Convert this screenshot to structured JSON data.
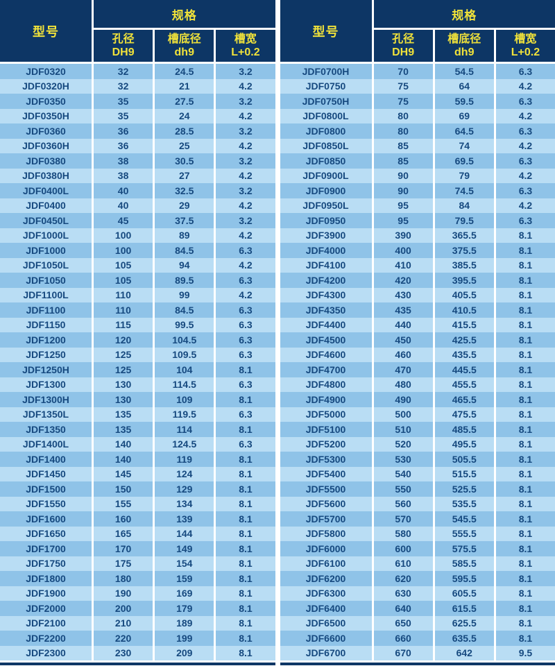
{
  "header": {
    "model": "型号",
    "spec": "规格",
    "columns": [
      {
        "top": "孔径",
        "bottom": "DH9"
      },
      {
        "top": "槽底径",
        "bottom": "dh9"
      },
      {
        "top": "槽宽",
        "bottom": "L+0.2"
      }
    ]
  },
  "colors": {
    "header_bg": "#0D3665",
    "header_text": "#F0E23A",
    "row_dark": "#8FC3E8",
    "row_light": "#B9DDF4",
    "cell_text": "#16497F",
    "separator": "#FFFFFF"
  },
  "tables": [
    {
      "rows": [
        [
          "JDF0320",
          "32",
          "24.5",
          "3.2"
        ],
        [
          "JDF0320H",
          "32",
          "21",
          "4.2"
        ],
        [
          "JDF0350",
          "35",
          "27.5",
          "3.2"
        ],
        [
          "JDF0350H",
          "35",
          "24",
          "4.2"
        ],
        [
          "JDF0360",
          "36",
          "28.5",
          "3.2"
        ],
        [
          "JDF0360H",
          "36",
          "25",
          "4.2"
        ],
        [
          "JDF0380",
          "38",
          "30.5",
          "3.2"
        ],
        [
          "JDF0380H",
          "38",
          "27",
          "4.2"
        ],
        [
          "JDF0400L",
          "40",
          "32.5",
          "3.2"
        ],
        [
          "JDF0400",
          "40",
          "29",
          "4.2"
        ],
        [
          "JDF0450L",
          "45",
          "37.5",
          "3.2"
        ],
        [
          "JDF1000L",
          "100",
          "89",
          "4.2"
        ],
        [
          "JDF1000",
          "100",
          "84.5",
          "6.3"
        ],
        [
          "JDF1050L",
          "105",
          "94",
          "4.2"
        ],
        [
          "JDF1050",
          "105",
          "89.5",
          "6.3"
        ],
        [
          "JDF1100L",
          "110",
          "99",
          "4.2"
        ],
        [
          "JDF1100",
          "110",
          "84.5",
          "6.3"
        ],
        [
          "JDF1150",
          "115",
          "99.5",
          "6.3"
        ],
        [
          "JDF1200",
          "120",
          "104.5",
          "6.3"
        ],
        [
          "JDF1250",
          "125",
          "109.5",
          "6.3"
        ],
        [
          "JDF1250H",
          "125",
          "104",
          "8.1"
        ],
        [
          "JDF1300",
          "130",
          "114.5",
          "6.3"
        ],
        [
          "JDF1300H",
          "130",
          "109",
          "8.1"
        ],
        [
          "JDF1350L",
          "135",
          "119.5",
          "6.3"
        ],
        [
          "JDF1350",
          "135",
          "114",
          "8.1"
        ],
        [
          "JDF1400L",
          "140",
          "124.5",
          "6.3"
        ],
        [
          "JDF1400",
          "140",
          "119",
          "8.1"
        ],
        [
          "JDF1450",
          "145",
          "124",
          "8.1"
        ],
        [
          "JDF1500",
          "150",
          "129",
          "8.1"
        ],
        [
          "JDF1550",
          "155",
          "134",
          "8.1"
        ],
        [
          "JDF1600",
          "160",
          "139",
          "8.1"
        ],
        [
          "JDF1650",
          "165",
          "144",
          "8.1"
        ],
        [
          "JDF1700",
          "170",
          "149",
          "8.1"
        ],
        [
          "JDF1750",
          "175",
          "154",
          "8.1"
        ],
        [
          "JDF1800",
          "180",
          "159",
          "8.1"
        ],
        [
          "JDF1900",
          "190",
          "169",
          "8.1"
        ],
        [
          "JDF2000",
          "200",
          "179",
          "8.1"
        ],
        [
          "JDF2100",
          "210",
          "189",
          "8.1"
        ],
        [
          "JDF2200",
          "220",
          "199",
          "8.1"
        ],
        [
          "JDF2300",
          "230",
          "209",
          "8.1"
        ]
      ]
    },
    {
      "rows": [
        [
          "JDF0700H",
          "70",
          "54.5",
          "6.3"
        ],
        [
          "JDF0750",
          "75",
          "64",
          "4.2"
        ],
        [
          "JDF0750H",
          "75",
          "59.5",
          "6.3"
        ],
        [
          "JDF0800L",
          "80",
          "69",
          "4.2"
        ],
        [
          "JDF0800",
          "80",
          "64.5",
          "6.3"
        ],
        [
          "JDF0850L",
          "85",
          "74",
          "4.2"
        ],
        [
          "JDF0850",
          "85",
          "69.5",
          "6.3"
        ],
        [
          "JDF0900L",
          "90",
          "79",
          "4.2"
        ],
        [
          "JDF0900",
          "90",
          "74.5",
          "6.3"
        ],
        [
          "JDF0950L",
          "95",
          "84",
          "4.2"
        ],
        [
          "JDF0950",
          "95",
          "79.5",
          "6.3"
        ],
        [
          "JDF3900",
          "390",
          "365.5",
          "8.1"
        ],
        [
          "JDF4000",
          "400",
          "375.5",
          "8.1"
        ],
        [
          "JDF4100",
          "410",
          "385.5",
          "8.1"
        ],
        [
          "JDF4200",
          "420",
          "395.5",
          "8.1"
        ],
        [
          "JDF4300",
          "430",
          "405.5",
          "8.1"
        ],
        [
          "JDF4350",
          "435",
          "410.5",
          "8.1"
        ],
        [
          "JDF4400",
          "440",
          "415.5",
          "8.1"
        ],
        [
          "JDF4500",
          "450",
          "425.5",
          "8.1"
        ],
        [
          "JDF4600",
          "460",
          "435.5",
          "8.1"
        ],
        [
          "JDF4700",
          "470",
          "445.5",
          "8.1"
        ],
        [
          "JDF4800",
          "480",
          "455.5",
          "8.1"
        ],
        [
          "JDF4900",
          "490",
          "465.5",
          "8.1"
        ],
        [
          "JDF5000",
          "500",
          "475.5",
          "8.1"
        ],
        [
          "JDF5100",
          "510",
          "485.5",
          "8.1"
        ],
        [
          "JDF5200",
          "520",
          "495.5",
          "8.1"
        ],
        [
          "JDF5300",
          "530",
          "505.5",
          "8.1"
        ],
        [
          "JDF5400",
          "540",
          "515.5",
          "8.1"
        ],
        [
          "JDF5500",
          "550",
          "525.5",
          "8.1"
        ],
        [
          "JDF5600",
          "560",
          "535.5",
          "8.1"
        ],
        [
          "JDF5700",
          "570",
          "545.5",
          "8.1"
        ],
        [
          "JDF5800",
          "580",
          "555.5",
          "8.1"
        ],
        [
          "JDF6000",
          "600",
          "575.5",
          "8.1"
        ],
        [
          "JDF6100",
          "610",
          "585.5",
          "8.1"
        ],
        [
          "JDF6200",
          "620",
          "595.5",
          "8.1"
        ],
        [
          "JDF6300",
          "630",
          "605.5",
          "8.1"
        ],
        [
          "JDF6400",
          "640",
          "615.5",
          "8.1"
        ],
        [
          "JDF6500",
          "650",
          "625.5",
          "8.1"
        ],
        [
          "JDF6600",
          "660",
          "635.5",
          "8.1"
        ],
        [
          "JDF6700",
          "670",
          "642",
          "9.5"
        ]
      ]
    }
  ]
}
